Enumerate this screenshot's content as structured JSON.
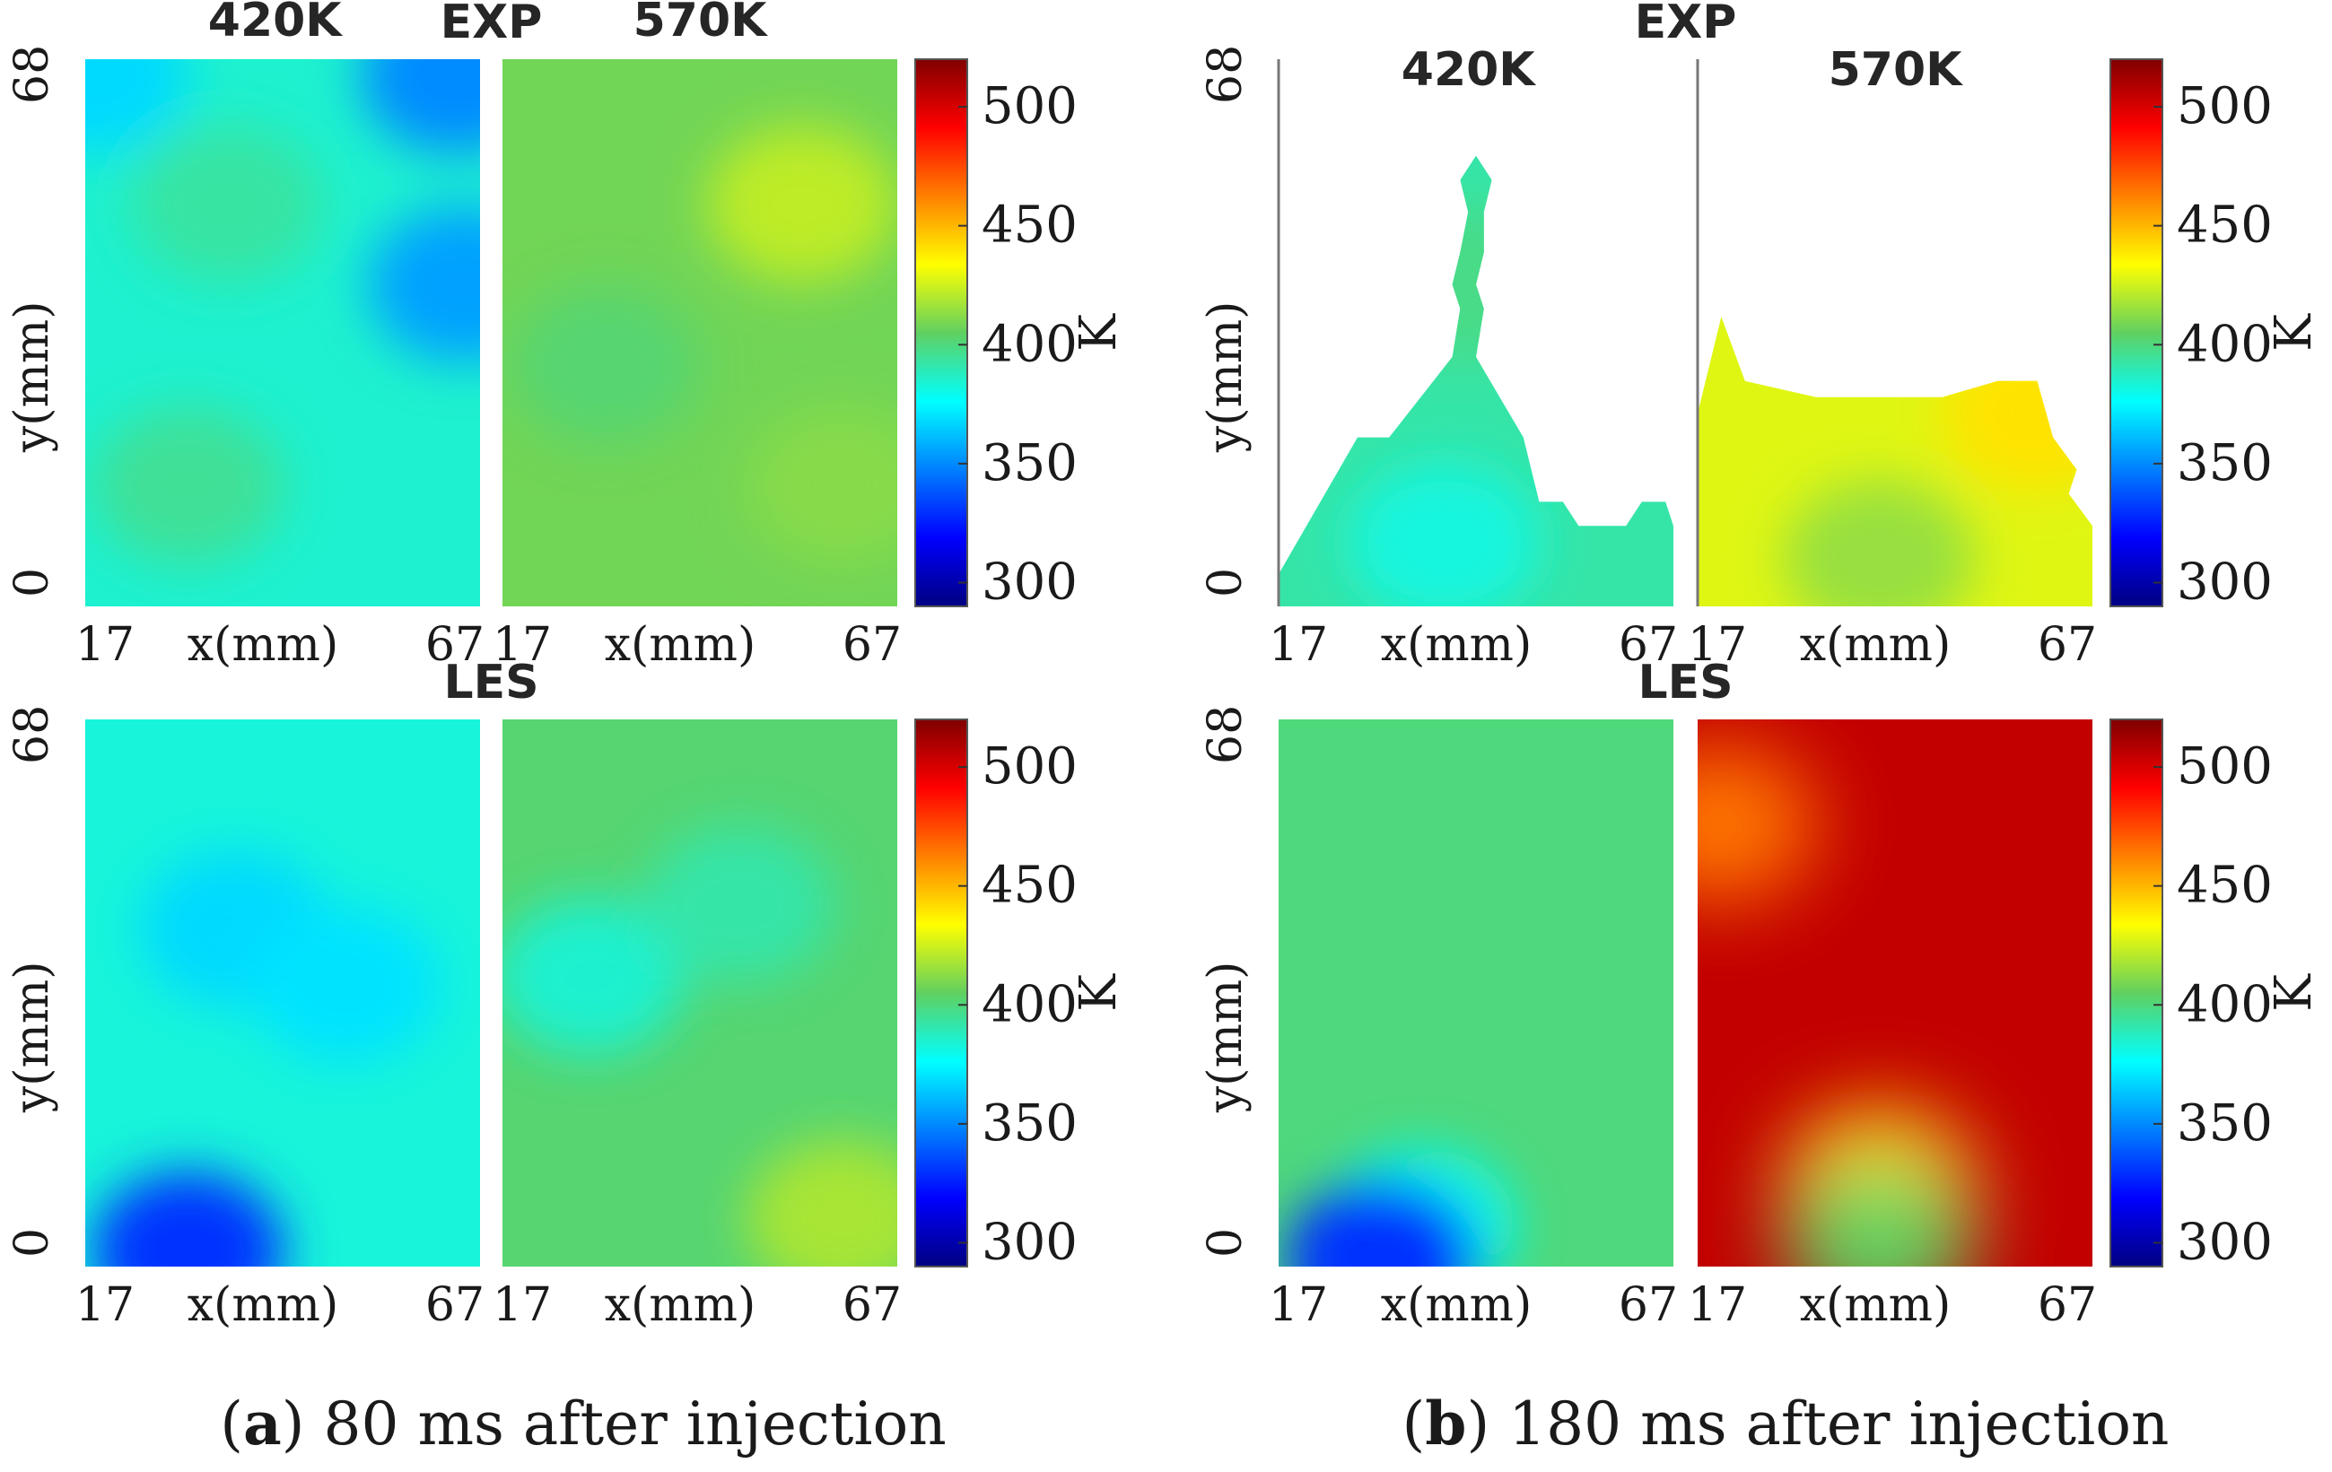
{
  "chart_data": [
    {
      "type": "heatmap",
      "panel": "a",
      "caption": {
        "letter": "a",
        "text": "80 ms after injection"
      },
      "units": "K",
      "colorbar": {
        "range": [
          290,
          520
        ],
        "ticks": [
          "300",
          "350",
          "400",
          "450",
          "500"
        ],
        "label": "K"
      },
      "rows": [
        {
          "label": "EXP",
          "panels": [
            {
              "title": "420K",
              "xlabel": "x(mm)",
              "ylabel": "y(mm)",
              "xticks": [
                "17",
                "67"
              ],
              "yticks": [
                "0",
                "68"
              ],
              "xlim": [
                17,
                67
              ],
              "ylim": [
                0,
                68
              ],
              "base": 385,
              "coverage": "full",
              "features": [
                {
                  "x": 35,
                  "y": 50,
                  "T": 393
                },
                {
                  "x": 30,
                  "y": 15,
                  "T": 395
                },
                {
                  "x": 65,
                  "y": 40,
                  "T": 355
                },
                {
                  "x": 64,
                  "y": 66,
                  "T": 350
                },
                {
                  "x": 18,
                  "y": 66,
                  "T": 368
                }
              ]
            },
            {
              "title": "570K",
              "xlabel": "x(mm)",
              "ylabel": "",
              "xticks": [
                "17",
                "67"
              ],
              "yticks": [],
              "xlim": [
                17,
                67
              ],
              "ylim": [
                0,
                68
              ],
              "base": 408,
              "coverage": "full",
              "features": [
                {
                  "x": 55,
                  "y": 50,
                  "T": 422
                },
                {
                  "x": 30,
                  "y": 30,
                  "T": 402
                },
                {
                  "x": 60,
                  "y": 15,
                  "T": 412
                }
              ]
            }
          ]
        },
        {
          "label": "LES",
          "panels": [
            {
              "title": "",
              "xlabel": "x(mm)",
              "ylabel": "y(mm)",
              "xticks": [
                "17",
                "67"
              ],
              "yticks": [
                "0",
                "68"
              ],
              "xlim": [
                17,
                67
              ],
              "ylim": [
                0,
                68
              ],
              "base": 383,
              "coverage": "full",
              "features": [
                {
                  "x": 36,
                  "y": 42,
                  "T": 368
                },
                {
                  "x": 50,
                  "y": 35,
                  "T": 370
                },
                {
                  "x": 30,
                  "y": 2,
                  "T": 330
                }
              ]
            },
            {
              "title": "",
              "xlabel": "x(mm)",
              "ylabel": "",
              "xticks": [
                "17",
                "67"
              ],
              "yticks": [],
              "xlim": [
                17,
                67
              ],
              "ylim": [
                0,
                68
              ],
              "base": 402,
              "coverage": "full",
              "features": [
                {
                  "x": 28,
                  "y": 36,
                  "T": 385
                },
                {
                  "x": 47,
                  "y": 45,
                  "T": 392
                },
                {
                  "x": 60,
                  "y": 6,
                  "T": 418
                }
              ]
            }
          ]
        }
      ]
    },
    {
      "type": "heatmap",
      "panel": "b",
      "caption": {
        "letter": "b",
        "text": "180 ms after injection"
      },
      "units": "K",
      "colorbar": {
        "range": [
          290,
          520
        ],
        "ticks": [
          "300",
          "350",
          "400",
          "450",
          "500"
        ],
        "label": "K"
      },
      "rows": [
        {
          "label": "EXP",
          "panels": [
            {
              "title": "420K",
              "xlabel": "x(mm)",
              "ylabel": "y(mm)",
              "xticks": [
                "17",
                "67"
              ],
              "yticks": [
                "0",
                "68"
              ],
              "xlim": [
                17,
                67
              ],
              "ylim": [
                0,
                68
              ],
              "base": 392,
              "coverage": "partial",
              "outline": [
                [
                  17,
                  4
                ],
                [
                  27,
                  21
                ],
                [
                  31,
                  21
                ],
                [
                  39,
                  31
                ],
                [
                  40,
                  37
                ],
                [
                  39,
                  40
                ],
                [
                  40,
                  44
                ],
                [
                  41,
                  49
                ],
                [
                  40,
                  53
                ],
                [
                  42,
                  56
                ],
                [
                  44,
                  53
                ],
                [
                  43,
                  49
                ],
                [
                  43,
                  44
                ],
                [
                  42,
                  40
                ],
                [
                  43,
                  37
                ],
                [
                  42,
                  31
                ],
                [
                  48,
                  21
                ],
                [
                  50,
                  13
                ],
                [
                  53,
                  13
                ],
                [
                  55,
                  10
                ],
                [
                  61,
                  10
                ],
                [
                  63,
                  13
                ],
                [
                  66,
                  13
                ],
                [
                  67,
                  10
                ],
                [
                  67,
                  0
                ],
                [
                  17,
                  0
                ]
              ],
              "features": [
                {
                  "x": 38,
                  "y": 8,
                  "T": 382
                },
                {
                  "x": 40,
                  "y": 40,
                  "T": 398
                }
              ]
            },
            {
              "title": "570K",
              "xlabel": "x(mm)",
              "ylabel": "",
              "xticks": [
                "17",
                "67"
              ],
              "yticks": [],
              "xlim": [
                17,
                67
              ],
              "ylim": [
                0,
                68
              ],
              "base": 428,
              "coverage": "partial",
              "outline": [
                [
                  17,
                  24
                ],
                [
                  20,
                  36
                ],
                [
                  23,
                  28
                ],
                [
                  32,
                  26
                ],
                [
                  48,
                  26
                ],
                [
                  55,
                  28
                ],
                [
                  60,
                  28
                ],
                [
                  62,
                  21
                ],
                [
                  65,
                  17
                ],
                [
                  64,
                  14
                ],
                [
                  67,
                  10
                ],
                [
                  67,
                  0
                ],
                [
                  17,
                  0
                ]
              ],
              "features": [
                {
                  "x": 60,
                  "y": 24,
                  "T": 440
                },
                {
                  "x": 40,
                  "y": 6,
                  "T": 415
                }
              ]
            }
          ]
        },
        {
          "label": "LES",
          "panels": [
            {
              "title": "",
              "xlabel": "x(mm)",
              "ylabel": "y(mm)",
              "xticks": [
                "17",
                "67"
              ],
              "yticks": [
                "0",
                "68"
              ],
              "xlim": [
                17,
                67
              ],
              "ylim": [
                0,
                68
              ],
              "base": 400,
              "coverage": "full",
              "features": [
                {
                  "x": 35,
                  "y": 5,
                  "T": 380
                },
                {
                  "x": 30,
                  "y": 1,
                  "T": 330
                }
              ]
            },
            {
              "title": "",
              "xlabel": "x(mm)",
              "ylabel": "",
              "xticks": [
                "17",
                "67"
              ],
              "yticks": [],
              "xlim": [
                17,
                67
              ],
              "ylim": [
                0,
                68
              ],
              "base": 505,
              "coverage": "full",
              "features": [
                {
                  "x": 40,
                  "y": 10,
                  "T": 440
                },
                {
                  "x": 40,
                  "y": 3,
                  "T": 405
                },
                {
                  "x": 20,
                  "y": 55,
                  "T": 465
                }
              ]
            }
          ]
        }
      ]
    }
  ]
}
